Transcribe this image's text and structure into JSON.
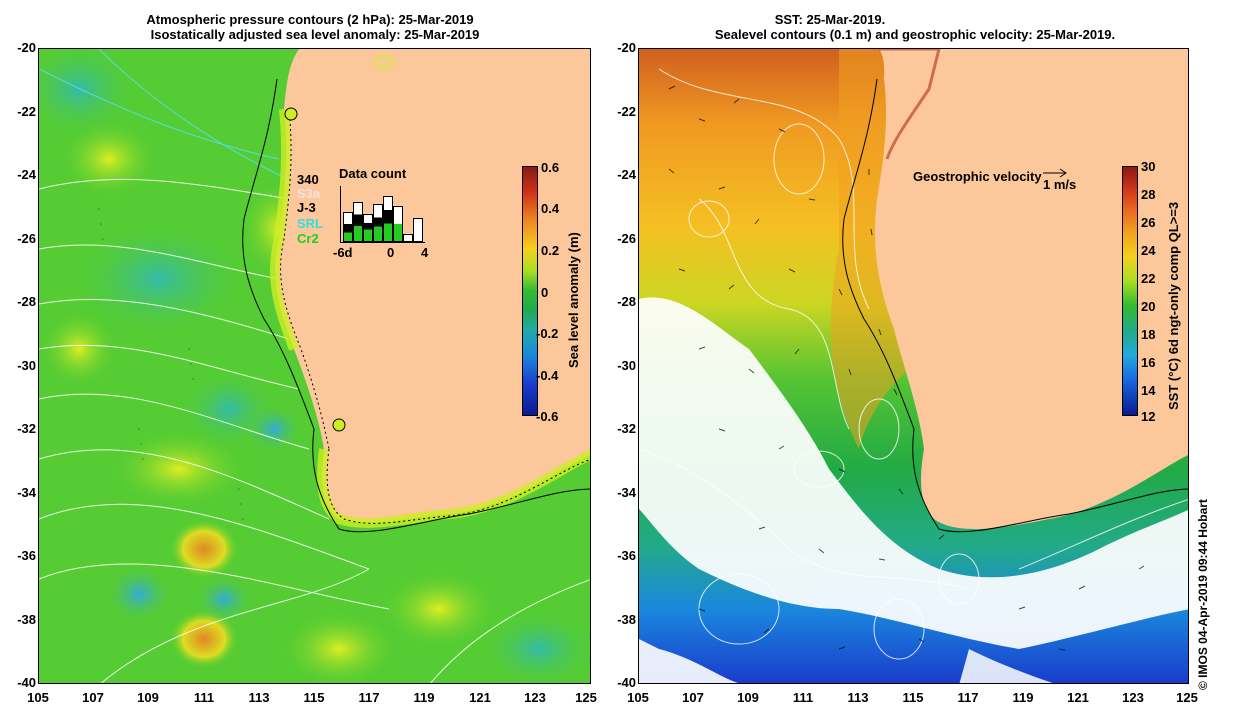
{
  "left_panel": {
    "title_line1": "Atmospheric pressure contours (2 hPa): 25-Mar-2019",
    "title_line2": "Isostatically adjusted sea level anomaly: 25-Mar-2019",
    "y_ticks": [
      "-20",
      "-22",
      "-24",
      "-26",
      "-28",
      "-30",
      "-32",
      "-34",
      "-36",
      "-38",
      "-40"
    ],
    "x_ticks": [
      "105",
      "107",
      "109",
      "111",
      "113",
      "115",
      "117",
      "119",
      "121",
      "123",
      "125"
    ],
    "colorbar": {
      "label": "Sea level anomaly (m)",
      "ticks": [
        "0.6",
        "0.4",
        "0.2",
        "0",
        "-0.2",
        "-0.4",
        "-0.6"
      ],
      "min": -0.6,
      "max": 0.6
    },
    "data_count": {
      "title": "Data count",
      "count": "340",
      "satellites": [
        {
          "name": "S3a",
          "color": "#f0e0e0"
        },
        {
          "name": "J-3",
          "color": "#000000"
        },
        {
          "name": "SRL",
          "color": "#33dddd"
        },
        {
          "name": "Cr2",
          "color": "#22cc22"
        }
      ],
      "x_ticks": [
        "-6d",
        "0",
        "4"
      ]
    }
  },
  "right_panel": {
    "title_line1": "SST: 25-Mar-2019.",
    "title_line2": "Sealevel contours (0.1 m) and geostrophic velocity: 25-Mar-2019.",
    "y_ticks": [
      "-20",
      "-22",
      "-24",
      "-26",
      "-28",
      "-30",
      "-32",
      "-34",
      "-36",
      "-38",
      "-40"
    ],
    "x_ticks": [
      "105",
      "107",
      "109",
      "111",
      "113",
      "115",
      "117",
      "119",
      "121",
      "123",
      "125"
    ],
    "colorbar": {
      "label": "SST (°C) 6d ngt-only comp QL>=3",
      "ticks": [
        "30",
        "28",
        "26",
        "24",
        "22",
        "20",
        "18",
        "16",
        "14",
        "12"
      ],
      "min": 12,
      "max": 30
    },
    "velocity_legend": {
      "label": "Geostrophic velocity",
      "unit": "1 m/s"
    }
  },
  "credit": "© IMOS 04-Apr-2019 09:44 Hobart",
  "colors": {
    "land": "#fcc89b",
    "sla_green": "#55cc33",
    "sla_yellow": "#ccee22",
    "sst_warm": "#f0a020",
    "sst_cool": "#33bb44"
  }
}
